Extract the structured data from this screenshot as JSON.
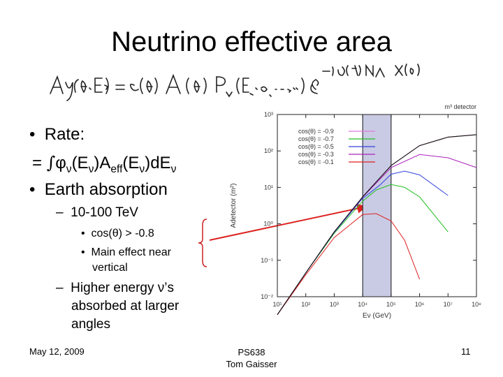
{
  "slide": {
    "title": "Neutrino effective area",
    "bullets": {
      "rate_label": "Rate:",
      "rate_eq": "= ∫φν(Eν)Aeff(Eν)dEν",
      "earth_absorption": "Earth absorption",
      "energy_range": "10-100 TeV",
      "cos_condition": "cos(θ) > -0.8",
      "main_effect_line1": "Main effect near",
      "main_effect_line2": "vertical",
      "higher_energy_line1": "Higher energy ν’s",
      "higher_energy_line2": "absorbed at larger",
      "higher_energy_line3": "angles"
    },
    "footer": {
      "date": "May 12, 2009",
      "course": "PS638",
      "author": "Tom Gaisser",
      "page": "11"
    }
  },
  "chart_data": {
    "type": "line",
    "title": "m³ detector",
    "xlabel": "Eν (GeV)",
    "ylabel": "Adetector (m²)",
    "xscale": "log",
    "yscale": "log",
    "xlim": [
      10,
      100000000
    ],
    "ylim": [
      0.01,
      1000
    ],
    "x_ticks": [
      "10¹",
      "10²",
      "10³",
      "10⁴",
      "10⁵",
      "10⁶",
      "10⁷",
      "10⁸"
    ],
    "y_ticks": [
      "10⁻²",
      "10⁻¹",
      "10⁰",
      "10¹",
      "10²",
      "10³"
    ],
    "legend_position": "top-left",
    "highlight_band_x": [
      10000,
      100000
    ],
    "series": [
      {
        "name": "cos(θ) = -0.9",
        "color": "#e07ad8",
        "x": [
          10,
          100,
          1000,
          10000,
          100000,
          1000000,
          10000000,
          100000000
        ],
        "y": [
          0.0032,
          0.045,
          0.6,
          5.5,
          40,
          140,
          240,
          280
        ]
      },
      {
        "name": "cos(θ) = -0.7",
        "color": "#22c022",
        "x": [
          10,
          100,
          1000,
          10000,
          30000,
          100000,
          300000,
          1000000,
          10000000
        ],
        "y": [
          0.0032,
          0.045,
          0.55,
          4.2,
          8.5,
          12,
          10,
          5.5,
          0.6
        ]
      },
      {
        "name": "cos(θ) = -0.5",
        "color": "#3344dd",
        "x": [
          10,
          100,
          1000,
          10000,
          40000,
          100000,
          300000,
          1000000,
          10000000
        ],
        "y": [
          0.0032,
          0.045,
          0.58,
          5,
          11.5,
          23,
          28,
          22,
          6
        ]
      },
      {
        "name": "cos(θ) = -0.3",
        "color": "#aa22bb",
        "x": [
          10,
          100,
          1000,
          10000,
          100000,
          1000000,
          10000000,
          100000000
        ],
        "y": [
          0.0032,
          0.045,
          0.6,
          5.4,
          35,
          80,
          65,
          35
        ]
      },
      {
        "name": "cos(θ) = -0.1",
        "color": "#dd2222",
        "x": [
          10,
          100,
          1000,
          10000,
          30000,
          100000,
          300000,
          1000000
        ],
        "y": [
          0.0032,
          0.04,
          0.42,
          1.8,
          1.9,
          1.2,
          0.35,
          0.03
        ]
      }
    ]
  }
}
